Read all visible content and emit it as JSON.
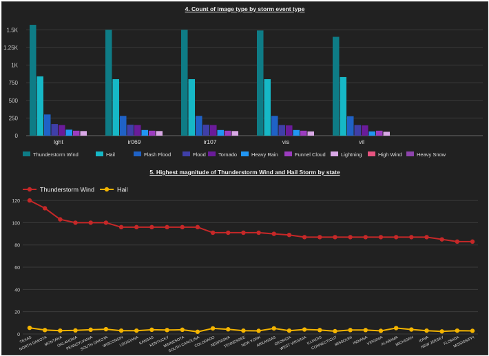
{
  "chart_data": [
    {
      "type": "bar",
      "title": "4. Count of image type by storm event type",
      "categories": [
        "lght",
        "ir069",
        "ir107",
        "vis",
        "vil"
      ],
      "ylim": [
        0,
        1600
      ],
      "yticks": [
        0,
        250,
        500,
        750,
        1000,
        1250,
        1500
      ],
      "ytick_labels": [
        "0",
        "250",
        "500",
        "750",
        "1K",
        "1.25K",
        "1.5K"
      ],
      "grid": true,
      "legend_position": "bottom",
      "series": [
        {
          "name": "Thunderstorm Wind",
          "color": "#0e7c86",
          "values": [
            1570,
            1500,
            1500,
            1490,
            1400
          ]
        },
        {
          "name": "Hail",
          "color": "#16b8c6",
          "values": [
            840,
            800,
            800,
            800,
            830
          ]
        },
        {
          "name": "Flash Flood",
          "color": "#1f62c6",
          "values": [
            300,
            280,
            280,
            280,
            275
          ]
        },
        {
          "name": "Flood",
          "color": "#3f3fa8",
          "values": [
            165,
            155,
            155,
            150,
            150
          ]
        },
        {
          "name": "Tornado",
          "color": "#6a1b9a",
          "values": [
            150,
            150,
            150,
            145,
            145
          ]
        },
        {
          "name": "Heavy Rain",
          "color": "#2196f3",
          "values": [
            85,
            80,
            80,
            80,
            60
          ]
        },
        {
          "name": "Funnel Cloud",
          "color": "#9c3cc0",
          "values": [
            70,
            70,
            70,
            70,
            70
          ]
        },
        {
          "name": "Lightning",
          "color": "#d9a8e6",
          "values": [
            65,
            65,
            65,
            60,
            55
          ]
        },
        {
          "name": "High Wind",
          "color": "#e75480",
          "values": [
            0,
            0,
            0,
            0,
            0
          ]
        },
        {
          "name": "Heavy Snow",
          "color": "#8e44ad",
          "values": [
            0,
            0,
            0,
            0,
            0
          ]
        }
      ]
    },
    {
      "type": "line",
      "title": "5. Highest magnitude of Thunderstorm Wind and Hail Storm by state",
      "categories": [
        "TEXAS",
        "NORTH DAKOTA",
        "MONTANA",
        "OKLAHOMA",
        "PENNSYLVANIA",
        "SOUTH DAKOTA",
        "WISCONSIN",
        "LOUISIANA",
        "KANSAS",
        "KENTUCKY",
        "MINNESOTA",
        "SOUTH CAROLINA",
        "COLORADO",
        "NEBRASKA",
        "TENNESSEE",
        "NEW YORK",
        "ARKANSAS",
        "GEORGIA",
        "WEST VIRGINIA",
        "ILLINOIS",
        "CONNECTICUT",
        "MISSOURI",
        "INDIANA",
        "VIRGINIA",
        "ALABAMA",
        "MICHIGAN",
        "IOWA",
        "NEW JERSEY",
        "FLORIDA",
        "MISSISSIPPI"
      ],
      "ylim": [
        0,
        125
      ],
      "yticks": [
        0,
        20,
        40,
        60,
        80,
        100,
        120
      ],
      "grid": true,
      "legend_position": "top-left",
      "series": [
        {
          "name": "Thunderstorm Wind",
          "color": "#c62828",
          "values": [
            120,
            113,
            103,
            100,
            100,
            100,
            96,
            96,
            96,
            96,
            96,
            96,
            91,
            91,
            91,
            91,
            90,
            89,
            87,
            87,
            87,
            87,
            87,
            87,
            87,
            87,
            87,
            85,
            83,
            83
          ]
        },
        {
          "name": "Hail",
          "color": "#f4b400",
          "values": [
            5.5,
            3.5,
            3,
            3.2,
            3.8,
            4.3,
            3,
            3,
            3.8,
            3.5,
            3.8,
            2,
            5,
            4.2,
            3,
            2.8,
            5,
            3,
            4,
            3.5,
            2.5,
            3.5,
            3.5,
            2.8,
            5.3,
            4,
            3,
            2.3,
            3,
            2.8
          ]
        }
      ]
    }
  ]
}
